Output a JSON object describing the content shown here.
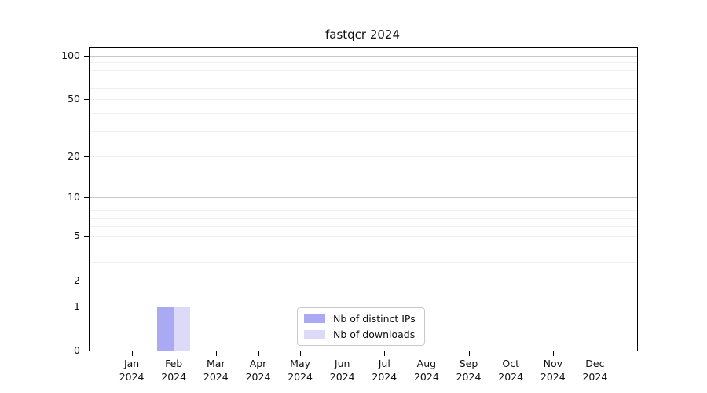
{
  "chart_data": {
    "type": "bar",
    "title": "fastqcr 2024",
    "yscale": "log1p",
    "ylim": [
      0,
      113
    ],
    "y_ticks": [
      0,
      1,
      2,
      5,
      10,
      20,
      50,
      100
    ],
    "grid": true,
    "grid_values": [
      1,
      2,
      3,
      4,
      5,
      6,
      7,
      8,
      9,
      10,
      20,
      30,
      40,
      50,
      60,
      70,
      80,
      90,
      100
    ],
    "grid_major_values": [
      1,
      10,
      100
    ],
    "categories": [
      {
        "month": "Jan",
        "year": "2024"
      },
      {
        "month": "Feb",
        "year": "2024"
      },
      {
        "month": "Mar",
        "year": "2024"
      },
      {
        "month": "Apr",
        "year": "2024"
      },
      {
        "month": "May",
        "year": "2024"
      },
      {
        "month": "Jun",
        "year": "2024"
      },
      {
        "month": "Jul",
        "year": "2024"
      },
      {
        "month": "Aug",
        "year": "2024"
      },
      {
        "month": "Sep",
        "year": "2024"
      },
      {
        "month": "Oct",
        "year": "2024"
      },
      {
        "month": "Nov",
        "year": "2024"
      },
      {
        "month": "Dec",
        "year": "2024"
      }
    ],
    "series": [
      {
        "name": "Nb of distinct IPs",
        "color": "#a9a9f4",
        "values": [
          0,
          1,
          0,
          0,
          0,
          0,
          0,
          0,
          0,
          0,
          0,
          0
        ]
      },
      {
        "name": "Nb of downloads",
        "color": "#dbdbf8",
        "values": [
          0,
          1,
          0,
          0,
          0,
          0,
          0,
          0,
          0,
          0,
          0,
          0
        ]
      }
    ],
    "legend_position": "bottom-center-inside",
    "colors": {
      "axis": "#000000",
      "grid_minor": "#f0f0f0",
      "grid_major": "#c9c9c9",
      "text": "#111111"
    }
  }
}
